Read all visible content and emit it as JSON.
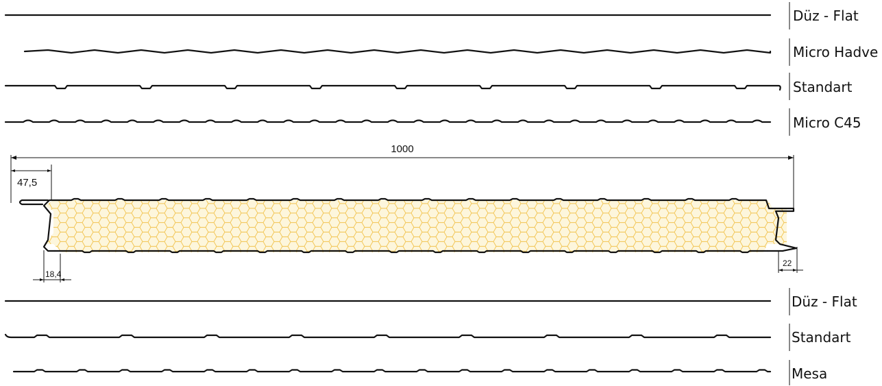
{
  "top_profiles": [
    {
      "label": "Düz - Flat",
      "style": "flat"
    },
    {
      "label": "Micro Hadve",
      "style": "micro-hadve"
    },
    {
      "label": "Standart",
      "style": "standart"
    },
    {
      "label": "Micro C45",
      "style": "micro-c45"
    }
  ],
  "bottom_profiles": [
    {
      "label": "Düz - Flat",
      "style": "flat"
    },
    {
      "label": "Standart",
      "style": "standart-bottom"
    },
    {
      "label": "Mesa",
      "style": "mesa"
    }
  ],
  "panel": {
    "core_pattern": "honeycomb",
    "dimensions": {
      "overall_width": "1000",
      "top_left_offset": "47,5",
      "bottom_left_offset": "18,4",
      "bottom_right_offset": "22"
    }
  },
  "colors": {
    "line": "#111111",
    "core_fill": "#fdf6dc",
    "core_hex": "#f1c24c"
  }
}
